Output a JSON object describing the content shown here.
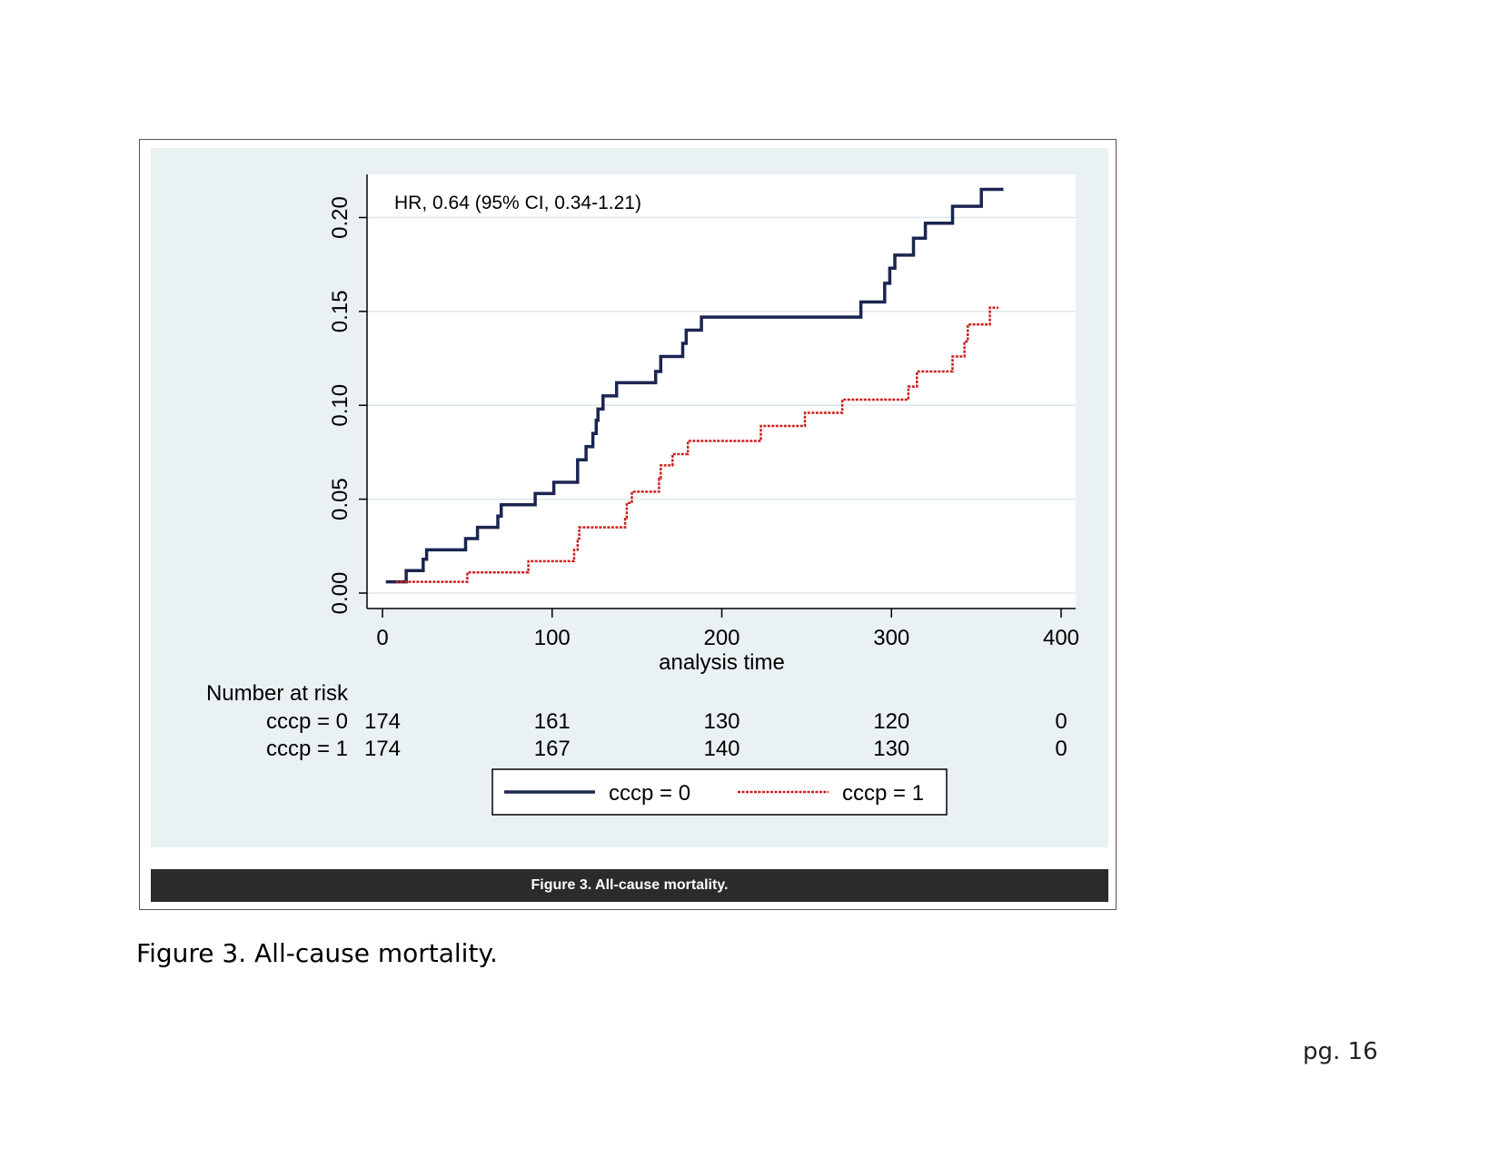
{
  "caption_bar": "Figure 3. All-cause mortality.",
  "document_caption": "Figure 3. All-cause mortality.",
  "page_number": "pg. 16",
  "chart_data": {
    "type": "line",
    "subtype": "kaplan-meier-failure-step",
    "annotation": "HR, 0.64 (95% CI, 0.34-1.21)",
    "xlabel": "analysis time",
    "ylabel": "",
    "xlim": [
      0,
      400
    ],
    "ylim": [
      0,
      0.225
    ],
    "xticks": [
      0,
      100,
      200,
      300,
      400
    ],
    "xtick_labels": [
      "0",
      "100",
      "200",
      "300",
      "400"
    ],
    "yticks": [
      0,
      0.05,
      0.1,
      0.15,
      0.2
    ],
    "ytick_labels": [
      "0.00",
      "0.05",
      "0.10",
      "0.15",
      "0.20"
    ],
    "grid": true,
    "legend_position": "bottom",
    "colors": {
      "panel": "#eaf1f2",
      "plot": "#ffffff",
      "grid": "#dde8ea"
    },
    "series": [
      {
        "name": "cccp = 0",
        "color": "#1a2550",
        "style": "solid",
        "points": [
          [
            2,
            0.006
          ],
          [
            14,
            0.006
          ],
          [
            14,
            0.012
          ],
          [
            24,
            0.012
          ],
          [
            24,
            0.018
          ],
          [
            26,
            0.018
          ],
          [
            26,
            0.023
          ],
          [
            49,
            0.023
          ],
          [
            49,
            0.029
          ],
          [
            56,
            0.029
          ],
          [
            56,
            0.035
          ],
          [
            68,
            0.035
          ],
          [
            68,
            0.041
          ],
          [
            70,
            0.041
          ],
          [
            70,
            0.047
          ],
          [
            90,
            0.047
          ],
          [
            90,
            0.053
          ],
          [
            101,
            0.053
          ],
          [
            101,
            0.059
          ],
          [
            115,
            0.059
          ],
          [
            115,
            0.071
          ],
          [
            120,
            0.071
          ],
          [
            120,
            0.078
          ],
          [
            124,
            0.078
          ],
          [
            124,
            0.085
          ],
          [
            126,
            0.085
          ],
          [
            126,
            0.092
          ],
          [
            127,
            0.092
          ],
          [
            127,
            0.098
          ],
          [
            130,
            0.098
          ],
          [
            130,
            0.105
          ],
          [
            138,
            0.105
          ],
          [
            138,
            0.112
          ],
          [
            161,
            0.112
          ],
          [
            161,
            0.118
          ],
          [
            164,
            0.118
          ],
          [
            164,
            0.126
          ],
          [
            177,
            0.126
          ],
          [
            177,
            0.133
          ],
          [
            179,
            0.133
          ],
          [
            179,
            0.14
          ],
          [
            188,
            0.14
          ],
          [
            188,
            0.147
          ],
          [
            282,
            0.147
          ],
          [
            282,
            0.155
          ],
          [
            296,
            0.155
          ],
          [
            296,
            0.165
          ],
          [
            299,
            0.165
          ],
          [
            299,
            0.173
          ],
          [
            302,
            0.173
          ],
          [
            302,
            0.18
          ],
          [
            313,
            0.18
          ],
          [
            313,
            0.189
          ],
          [
            320,
            0.189
          ],
          [
            320,
            0.197
          ],
          [
            336,
            0.197
          ],
          [
            336,
            0.206
          ],
          [
            353,
            0.206
          ],
          [
            353,
            0.215
          ],
          [
            366,
            0.215
          ]
        ]
      },
      {
        "name": "cccp = 1",
        "color": "#cc1f1f",
        "style": "dashed",
        "points": [
          [
            8,
            0.006
          ],
          [
            50,
            0.006
          ],
          [
            50,
            0.011
          ],
          [
            86,
            0.011
          ],
          [
            86,
            0.017
          ],
          [
            113,
            0.017
          ],
          [
            113,
            0.023
          ],
          [
            115,
            0.023
          ],
          [
            115,
            0.029
          ],
          [
            116,
            0.029
          ],
          [
            116,
            0.035
          ],
          [
            143,
            0.035
          ],
          [
            143,
            0.04
          ],
          [
            144,
            0.04
          ],
          [
            144,
            0.048
          ],
          [
            147,
            0.048
          ],
          [
            147,
            0.054
          ],
          [
            163,
            0.054
          ],
          [
            163,
            0.061
          ],
          [
            164,
            0.061
          ],
          [
            164,
            0.068
          ],
          [
            171,
            0.068
          ],
          [
            171,
            0.074
          ],
          [
            180,
            0.074
          ],
          [
            180,
            0.081
          ],
          [
            223,
            0.081
          ],
          [
            223,
            0.089
          ],
          [
            249,
            0.089
          ],
          [
            249,
            0.096
          ],
          [
            271,
            0.096
          ],
          [
            271,
            0.103
          ],
          [
            310,
            0.103
          ],
          [
            310,
            0.11
          ],
          [
            315,
            0.11
          ],
          [
            315,
            0.118
          ],
          [
            336,
            0.118
          ],
          [
            336,
            0.126
          ],
          [
            343,
            0.126
          ],
          [
            343,
            0.134
          ],
          [
            345,
            0.134
          ],
          [
            345,
            0.143
          ],
          [
            358,
            0.143
          ],
          [
            358,
            0.152
          ],
          [
            363,
            0.152
          ]
        ]
      }
    ],
    "risk_table": {
      "title": "Number at risk",
      "times": [
        0,
        100,
        200,
        300,
        400
      ],
      "rows": [
        {
          "label": "cccp = 0",
          "values": [
            "174",
            "161",
            "130",
            "120",
            "0"
          ]
        },
        {
          "label": "cccp = 1",
          "values": [
            "174",
            "167",
            "140",
            "130",
            "0"
          ]
        }
      ]
    }
  }
}
